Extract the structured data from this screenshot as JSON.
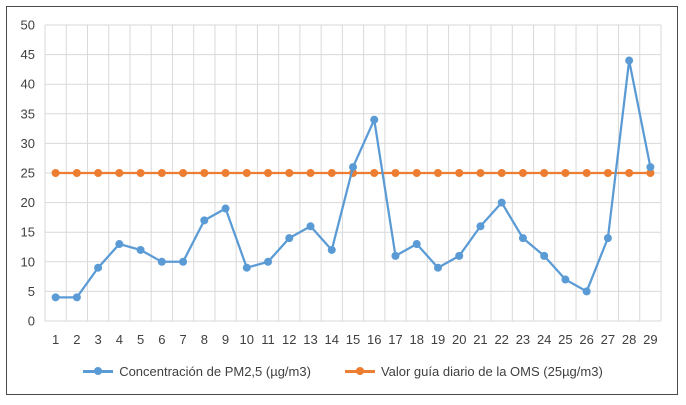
{
  "chart_data": {
    "type": "line",
    "categories": [
      "1",
      "2",
      "3",
      "4",
      "5",
      "6",
      "7",
      "8",
      "9",
      "10",
      "11",
      "12",
      "13",
      "14",
      "15",
      "16",
      "17",
      "18",
      "19",
      "20",
      "21",
      "22",
      "23",
      "24",
      "25",
      "26",
      "27",
      "28",
      "29"
    ],
    "series": [
      {
        "name": "Concentración de PM2,5 (µg/m3)",
        "color": "#5B9BD5",
        "values": [
          4,
          4,
          9,
          13,
          12,
          10,
          10,
          17,
          19,
          9,
          10,
          14,
          16,
          12,
          26,
          34,
          11,
          13,
          9,
          11,
          16,
          20,
          14,
          11,
          7,
          5,
          14,
          44,
          26
        ]
      },
      {
        "name": "Valor guía diario de la OMS (25µg/m3)",
        "color": "#ED7D31",
        "values": [
          25,
          25,
          25,
          25,
          25,
          25,
          25,
          25,
          25,
          25,
          25,
          25,
          25,
          25,
          25,
          25,
          25,
          25,
          25,
          25,
          25,
          25,
          25,
          25,
          25,
          25,
          25,
          25,
          25
        ]
      }
    ],
    "ylim": [
      0,
      50
    ],
    "yticks": [
      "0",
      "5",
      "10",
      "15",
      "20",
      "25",
      "30",
      "35",
      "40",
      "45",
      "50"
    ],
    "grid": true,
    "legend_position": "bottom"
  }
}
